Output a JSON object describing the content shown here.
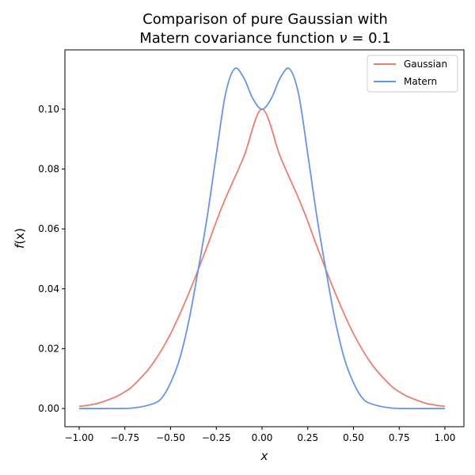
{
  "chart_data": {
    "type": "line",
    "title_line1": "Comparison of pure Gaussian with",
    "title_line2_prefix": "Matern covariance function ",
    "title_line2_nu": "ν",
    "title_line2_eq": " =  0.1",
    "xlabel_main": "x",
    "ylabel_f": "f",
    "ylabel_arg": "(x)",
    "xlim": [
      -1.0,
      1.0
    ],
    "ylim": [
      0.0,
      0.114
    ],
    "xticks": [
      -1.0,
      -0.75,
      -0.5,
      -0.25,
      0.0,
      0.25,
      0.5,
      0.75,
      1.0
    ],
    "xtick_labels": [
      "−1.00",
      "−0.75",
      "−0.50",
      "−0.25",
      "0.00",
      "0.25",
      "0.50",
      "0.75",
      "1.00"
    ],
    "yticks": [
      0.0,
      0.02,
      0.04,
      0.06,
      0.08,
      0.1
    ],
    "ytick_labels": [
      "0.00",
      "0.02",
      "0.04",
      "0.06",
      "0.08",
      "0.10"
    ],
    "legend_position": "top-right",
    "grid": false,
    "series": [
      {
        "name": "Gaussian",
        "color": "#f07c6e",
        "x": [
          -1.0,
          -0.9,
          -0.8,
          -0.75,
          -0.7,
          -0.6,
          -0.5,
          -0.4,
          -0.3,
          -0.25,
          -0.2,
          -0.1,
          0.0,
          0.1,
          0.2,
          0.25,
          0.3,
          0.4,
          0.5,
          0.6,
          0.7,
          0.75,
          0.8,
          0.9,
          1.0
        ],
        "y": [
          0.0007,
          0.0017,
          0.0039,
          0.0056,
          0.0079,
          0.0148,
          0.025,
          0.0386,
          0.0542,
          0.0625,
          0.0702,
          0.0841,
          0.1,
          0.0841,
          0.0702,
          0.0625,
          0.0542,
          0.0386,
          0.025,
          0.0148,
          0.0079,
          0.0056,
          0.0039,
          0.0017,
          0.0007
        ]
      },
      {
        "name": "Matern",
        "color": "#6495ed",
        "x": [
          -1.0,
          -0.8,
          -0.7,
          -0.6,
          -0.55,
          -0.5,
          -0.45,
          -0.4,
          -0.35,
          -0.3,
          -0.25,
          -0.2,
          -0.15,
          -0.1,
          -0.05,
          0.0,
          0.05,
          0.1,
          0.15,
          0.2,
          0.25,
          0.3,
          0.35,
          0.4,
          0.45,
          0.5,
          0.55,
          0.6,
          0.7,
          0.8,
          1.0
        ],
        "y": [
          0.0,
          0.0,
          0.0002,
          0.0015,
          0.0034,
          0.0086,
          0.0167,
          0.0294,
          0.046,
          0.064,
          0.085,
          0.105,
          0.1135,
          0.1105,
          0.1035,
          0.1,
          0.1035,
          0.1105,
          0.1135,
          0.105,
          0.085,
          0.064,
          0.046,
          0.0294,
          0.0167,
          0.0086,
          0.0034,
          0.0015,
          0.0002,
          0.0,
          0.0
        ]
      }
    ]
  }
}
